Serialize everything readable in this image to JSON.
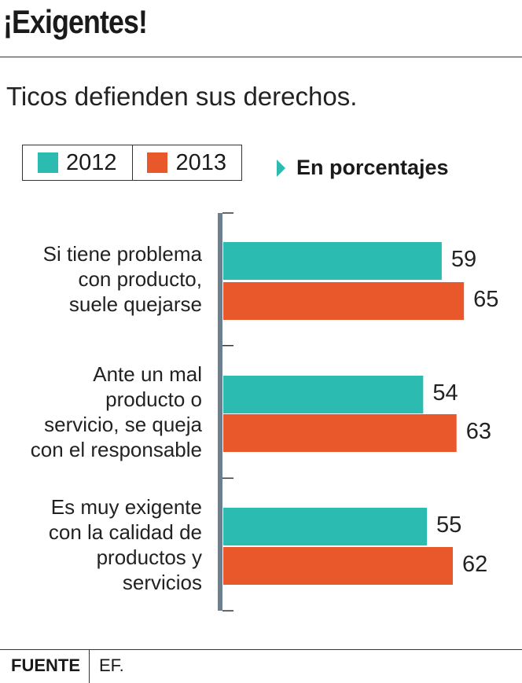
{
  "header": {
    "title": "¡Exigentes!",
    "subtitle": "Ticos defienden sus derechos."
  },
  "chart_data": {
    "type": "bar",
    "orientation": "horizontal",
    "unit_note": "En porcentajes",
    "categories": [
      [
        "Si tiene problema",
        "con producto,",
        "suele quejarse"
      ],
      [
        "Ante un mal",
        "producto o",
        "servicio, se queja",
        "con el responsable"
      ],
      [
        "Es muy exigente",
        "con la calidad de",
        "productos y",
        "servicios"
      ]
    ],
    "series": [
      {
        "name": "2012",
        "color": "#2bbbb0",
        "values": [
          59,
          54,
          55
        ]
      },
      {
        "name": "2013",
        "color": "#e8582b",
        "values": [
          65,
          63,
          62
        ]
      }
    ],
    "legend": "top-left",
    "grid": false,
    "axis_color": "#6b7f8e"
  },
  "footer": {
    "source_label": "FUENTE",
    "source": "EF."
  }
}
